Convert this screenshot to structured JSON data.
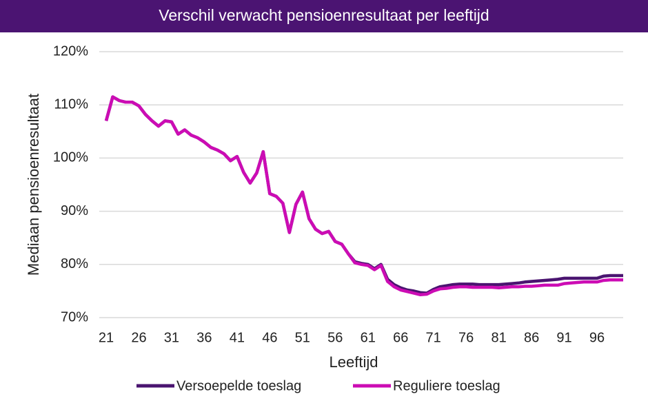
{
  "chart_data": {
    "type": "line",
    "title": "Verschil verwacht pensioenresultaat per leeftijd",
    "x_label": "Leeftijd",
    "y_label": "Mediaan pensioenresultaat",
    "x": [
      21,
      22,
      23,
      24,
      25,
      26,
      27,
      28,
      29,
      30,
      31,
      32,
      33,
      34,
      35,
      36,
      37,
      38,
      39,
      40,
      41,
      42,
      43,
      44,
      45,
      46,
      47,
      48,
      49,
      50,
      51,
      52,
      53,
      54,
      55,
      56,
      57,
      58,
      59,
      60,
      61,
      62,
      63,
      64,
      65,
      66,
      67,
      68,
      69,
      70,
      71,
      72,
      73,
      74,
      75,
      76,
      77,
      78,
      79,
      80,
      81,
      82,
      83,
      84,
      85,
      86,
      87,
      88,
      89,
      90,
      91,
      92,
      93,
      94,
      95,
      96,
      97,
      98,
      99,
      100
    ],
    "xlim": [
      21,
      100
    ],
    "xticks": [
      21,
      26,
      31,
      36,
      41,
      46,
      51,
      56,
      61,
      66,
      71,
      76,
      81,
      86,
      91,
      96
    ],
    "ylim": [
      70,
      120
    ],
    "yticks": [
      {
        "value": 70,
        "label": "70%"
      },
      {
        "value": 80,
        "label": "80%"
      },
      {
        "value": 90,
        "label": "90%"
      },
      {
        "value": 100,
        "label": "100%"
      },
      {
        "value": 110,
        "label": "110%"
      },
      {
        "value": 120,
        "label": "120%"
      }
    ],
    "grid": true,
    "legend": "bottom",
    "series": [
      {
        "name": "Versoepelde toeslag",
        "color": "#4a1470",
        "values": [
          107,
          111.5,
          110.8,
          110.5,
          110.5,
          109.8,
          108.2,
          107,
          106,
          107,
          106.8,
          104.5,
          105.3,
          104.3,
          103.8,
          103,
          102,
          101.5,
          100.8,
          99.5,
          100.3,
          97.3,
          95.3,
          97.2,
          101.2,
          93.3,
          92.8,
          91.5,
          86,
          91.3,
          93.6,
          88.6,
          86.6,
          85.8,
          86.2,
          84.3,
          83.8,
          82,
          80.5,
          80.2,
          80,
          79.2,
          80,
          77.2,
          76.2,
          75.6,
          75.2,
          75,
          74.7,
          74.6,
          75.3,
          75.8,
          76,
          76.2,
          76.3,
          76.3,
          76.3,
          76.2,
          76.2,
          76.2,
          76.2,
          76.3,
          76.4,
          76.5,
          76.7,
          76.8,
          76.9,
          77,
          77.1,
          77.2,
          77.4,
          77.4,
          77.4,
          77.4,
          77.4,
          77.4,
          77.8,
          77.9,
          77.9,
          77.9
        ]
      },
      {
        "name": "Reguliere toeslag",
        "color": "#cc0cb4",
        "values": [
          107,
          111.5,
          110.8,
          110.5,
          110.5,
          109.8,
          108.2,
          107,
          106,
          107,
          106.8,
          104.5,
          105.3,
          104.3,
          103.8,
          103,
          102,
          101.5,
          100.8,
          99.5,
          100.3,
          97.3,
          95.3,
          97.2,
          101.2,
          93.3,
          92.8,
          91.5,
          86,
          91.3,
          93.6,
          88.6,
          86.6,
          85.8,
          86.2,
          84.3,
          83.8,
          82,
          80.3,
          80,
          79.8,
          79,
          79.8,
          76.8,
          75.8,
          75.2,
          74.9,
          74.6,
          74.3,
          74.4,
          75,
          75.4,
          75.5,
          75.7,
          75.8,
          75.8,
          75.7,
          75.7,
          75.7,
          75.7,
          75.6,
          75.7,
          75.8,
          75.8,
          75.9,
          75.9,
          76,
          76.1,
          76.1,
          76.1,
          76.4,
          76.5,
          76.6,
          76.7,
          76.7,
          76.7,
          77,
          77.1,
          77.1,
          77.1
        ]
      }
    ]
  }
}
